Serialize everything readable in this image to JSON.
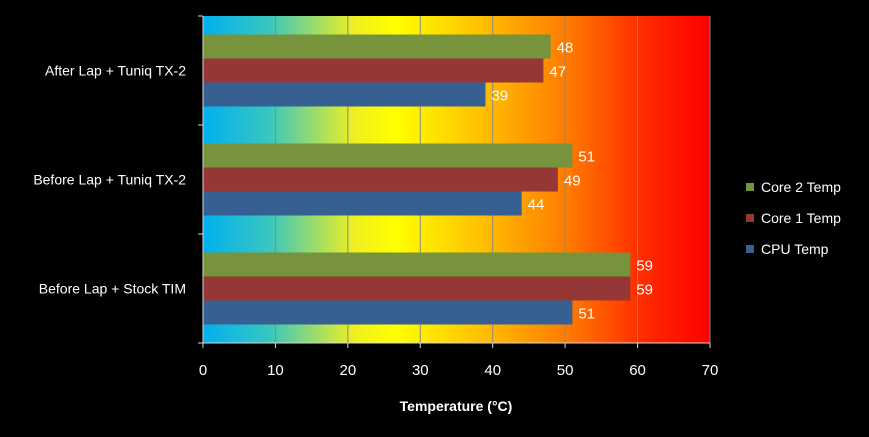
{
  "chart_data": {
    "type": "bar",
    "orientation": "horizontal",
    "title": "",
    "xlabel": "Temperature (°C)",
    "ylabel": "",
    "xlim": [
      0,
      70
    ],
    "xticks": [
      0,
      10,
      20,
      30,
      40,
      50,
      60,
      70
    ],
    "grid": true,
    "legend_position": "right",
    "categories": [
      "After Lap + Tuniq TX-2",
      "Before Lap + Tuniq TX-2",
      "Before Lap + Stock TIM"
    ],
    "series": [
      {
        "name": "Core 2 Temp",
        "color": "#77933c",
        "values": [
          48,
          51,
          59
        ]
      },
      {
        "name": "Core 1 Temp",
        "color": "#953735",
        "values": [
          47,
          49,
          59
        ]
      },
      {
        "name": "CPU Temp",
        "color": "#376092",
        "values": [
          39,
          44,
          51
        ]
      }
    ],
    "legend_order": [
      "Core 2 Temp",
      "Core 1 Temp",
      "CPU Temp"
    ],
    "background_gradient": [
      "#00b0f0",
      "#ffff00",
      "#ffc000",
      "#ff6600",
      "#ff0000"
    ]
  }
}
